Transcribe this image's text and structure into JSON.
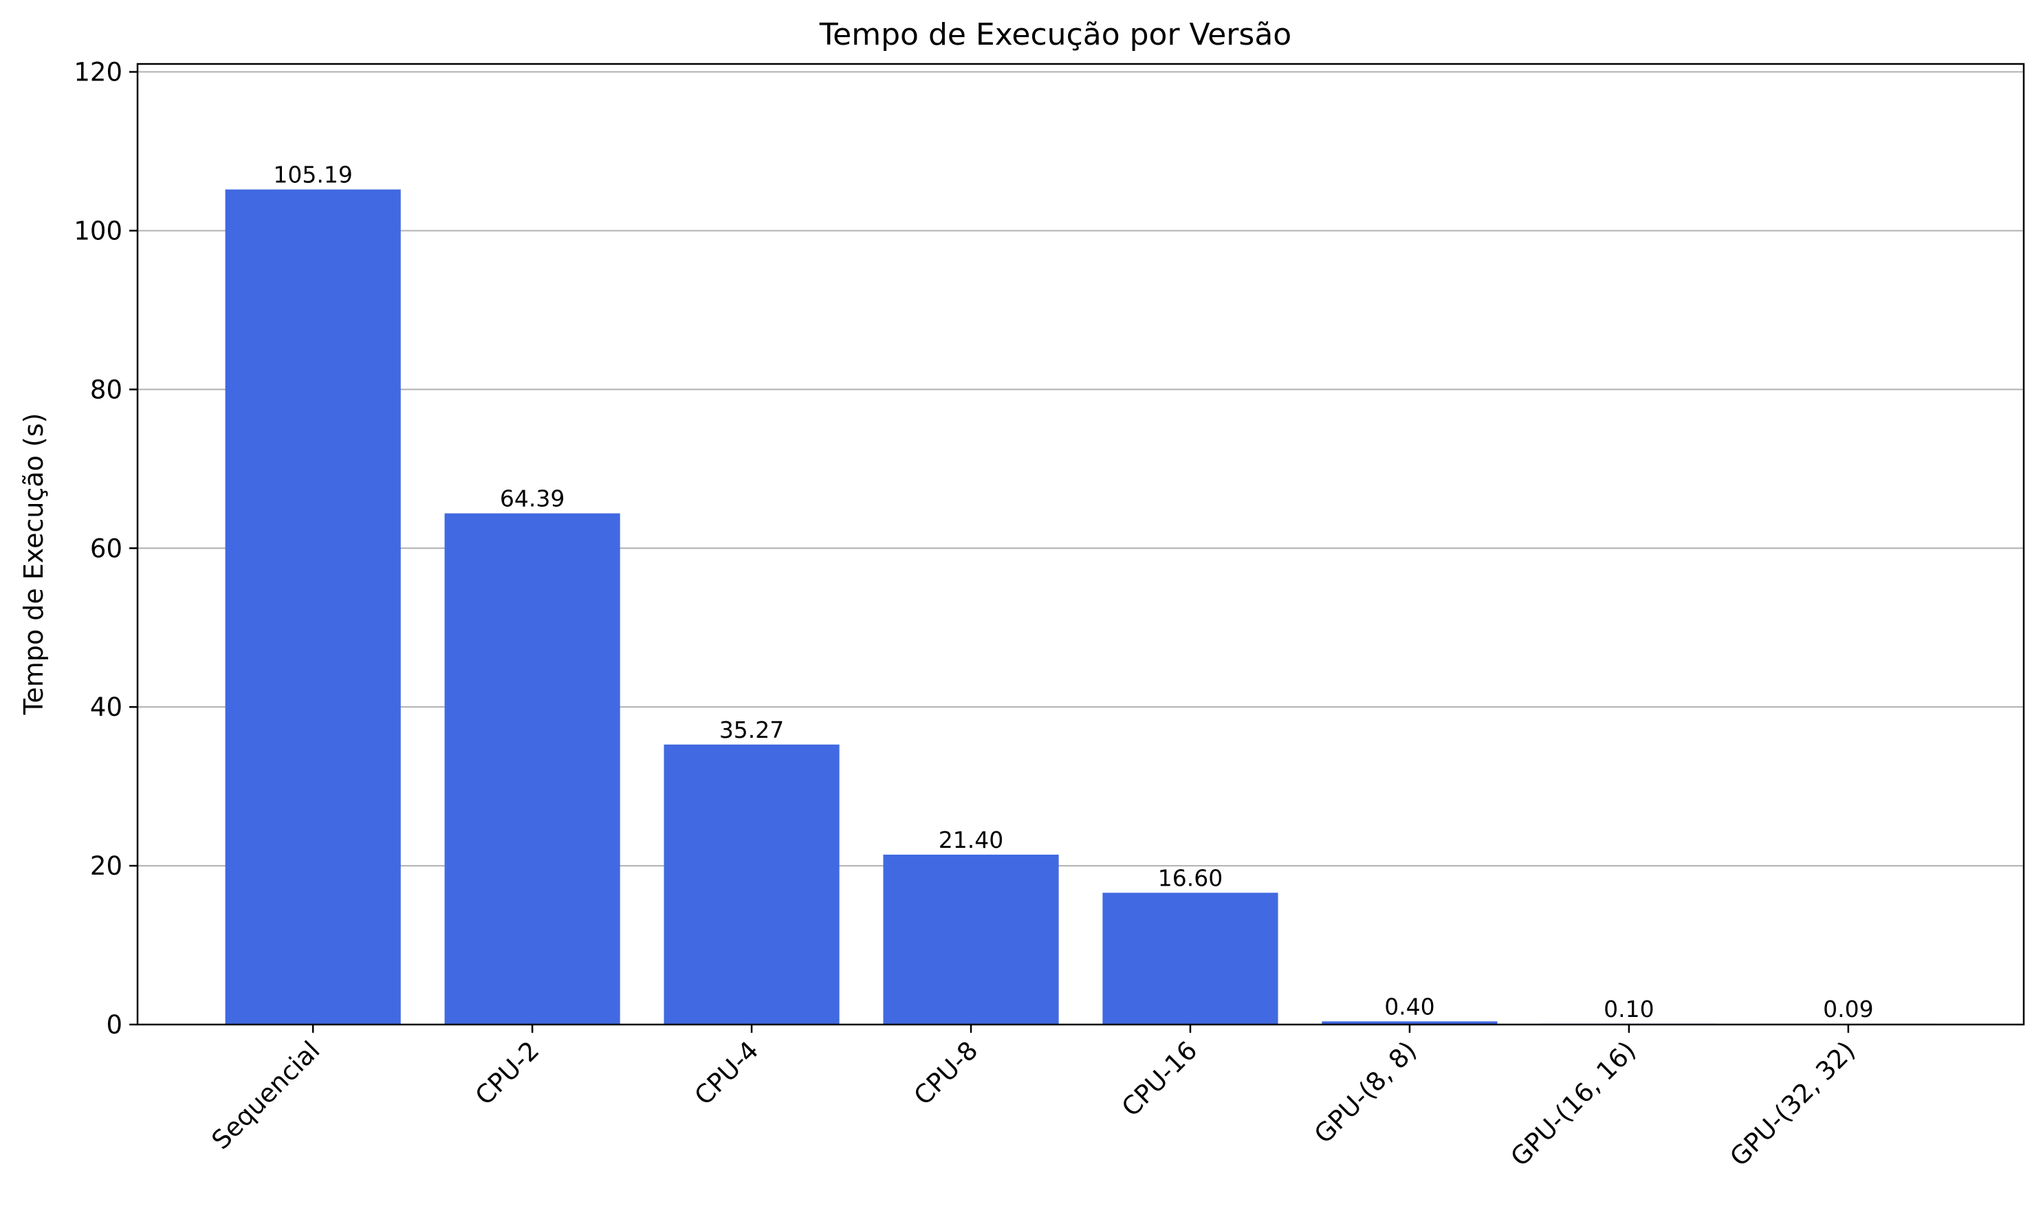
{
  "chart_data": {
    "type": "bar",
    "title": "Tempo de Execução por Versão",
    "xlabel": "",
    "ylabel": "Tempo de Execução (s)",
    "categories": [
      "Sequencial",
      "CPU-2",
      "CPU-4",
      "CPU-8",
      "CPU-16",
      "GPU-(8, 8)",
      "GPU-(16, 16)",
      "GPU-(32, 32)"
    ],
    "values": [
      105.19,
      64.39,
      35.27,
      21.4,
      16.6,
      0.4,
      0.1,
      0.09
    ],
    "data_labels": [
      "105.19",
      "64.39",
      "35.27",
      "21.40",
      "16.60",
      "0.40",
      "0.10",
      "0.09"
    ],
    "ylim": [
      0,
      121
    ],
    "yticks": [
      0,
      20,
      40,
      60,
      80,
      100,
      120
    ],
    "grid": "y-axis",
    "legend": "none",
    "bar_color": "#4169e1"
  }
}
